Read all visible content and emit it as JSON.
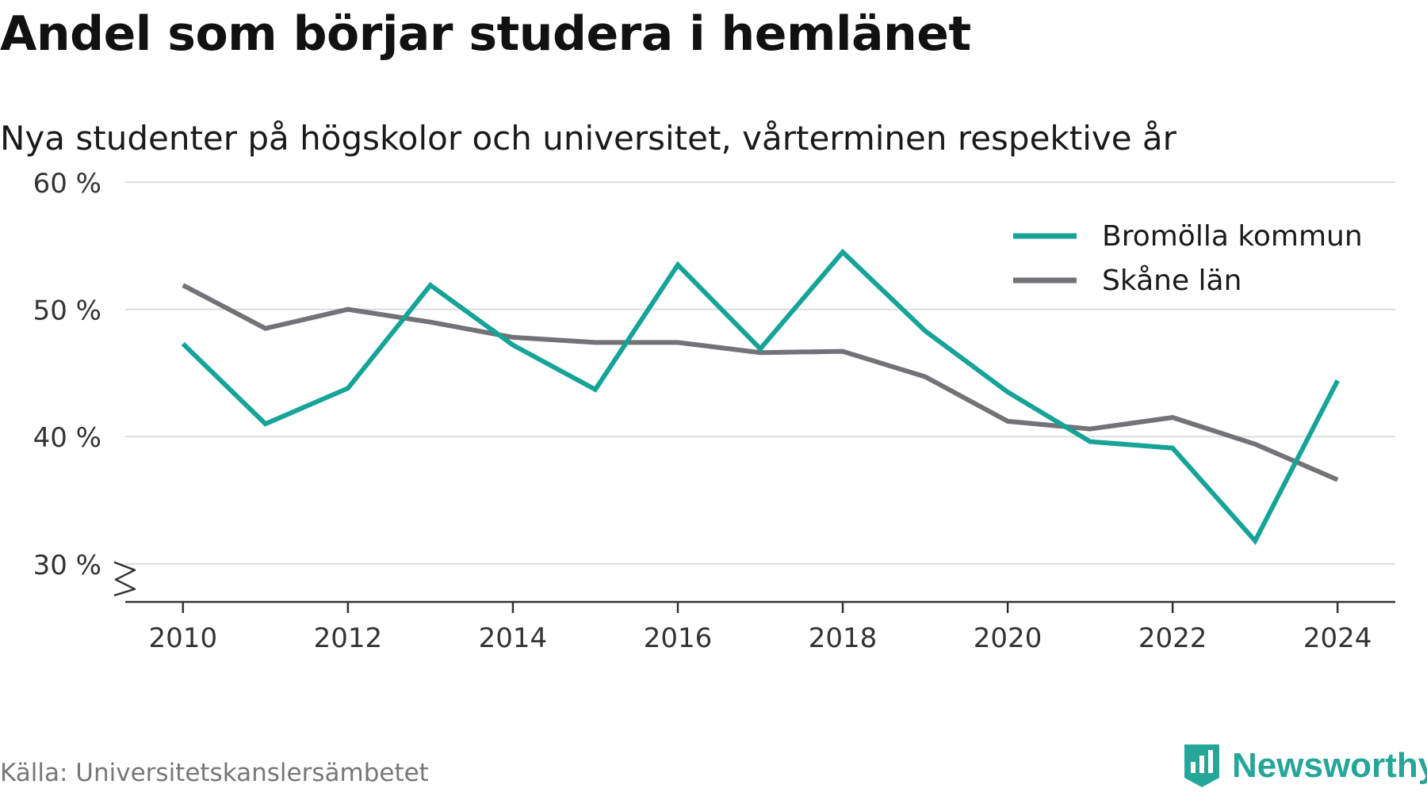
{
  "title": "Andel som börjar studera i hemlänet",
  "subtitle": "Nya studenter på högskolor och universitet, vårterminen respektive år",
  "source": "Källa: Universitetskanslersämbetet",
  "brand": {
    "name": "Newsworthy",
    "icon": "newsworthy-logo-icon",
    "color": "#25a698"
  },
  "chart_data": {
    "type": "line",
    "x": [
      2010,
      2011,
      2012,
      2013,
      2014,
      2015,
      2016,
      2017,
      2018,
      2019,
      2020,
      2021,
      2022,
      2023,
      2024
    ],
    "xticks": [
      2010,
      2012,
      2014,
      2016,
      2018,
      2020,
      2022,
      2024
    ],
    "xtick_labels": [
      "2010",
      "2012",
      "2014",
      "2016",
      "2018",
      "2020",
      "2022",
      "2024"
    ],
    "yticks": [
      30,
      40,
      50,
      60
    ],
    "ytick_labels": [
      "30 %",
      "40 %",
      "50 %",
      "60 %"
    ],
    "ylim": [
      27,
      60
    ],
    "xlim": [
      2009.3,
      2024.7
    ],
    "y_axis_break": true,
    "grid": true,
    "legend_position": "top-right",
    "series": [
      {
        "name": "Bromölla kommun",
        "color": "#16a398",
        "values": [
          47.3,
          41.0,
          43.8,
          51.9,
          47.2,
          43.7,
          53.5,
          46.9,
          54.5,
          48.3,
          43.5,
          39.6,
          39.1,
          31.8,
          44.4
        ]
      },
      {
        "name": "Skåne län",
        "color": "#727278",
        "values": [
          51.9,
          48.5,
          50.0,
          49.0,
          47.8,
          47.4,
          47.4,
          46.6,
          46.7,
          44.7,
          41.2,
          40.6,
          41.5,
          39.4,
          36.6
        ]
      }
    ]
  }
}
